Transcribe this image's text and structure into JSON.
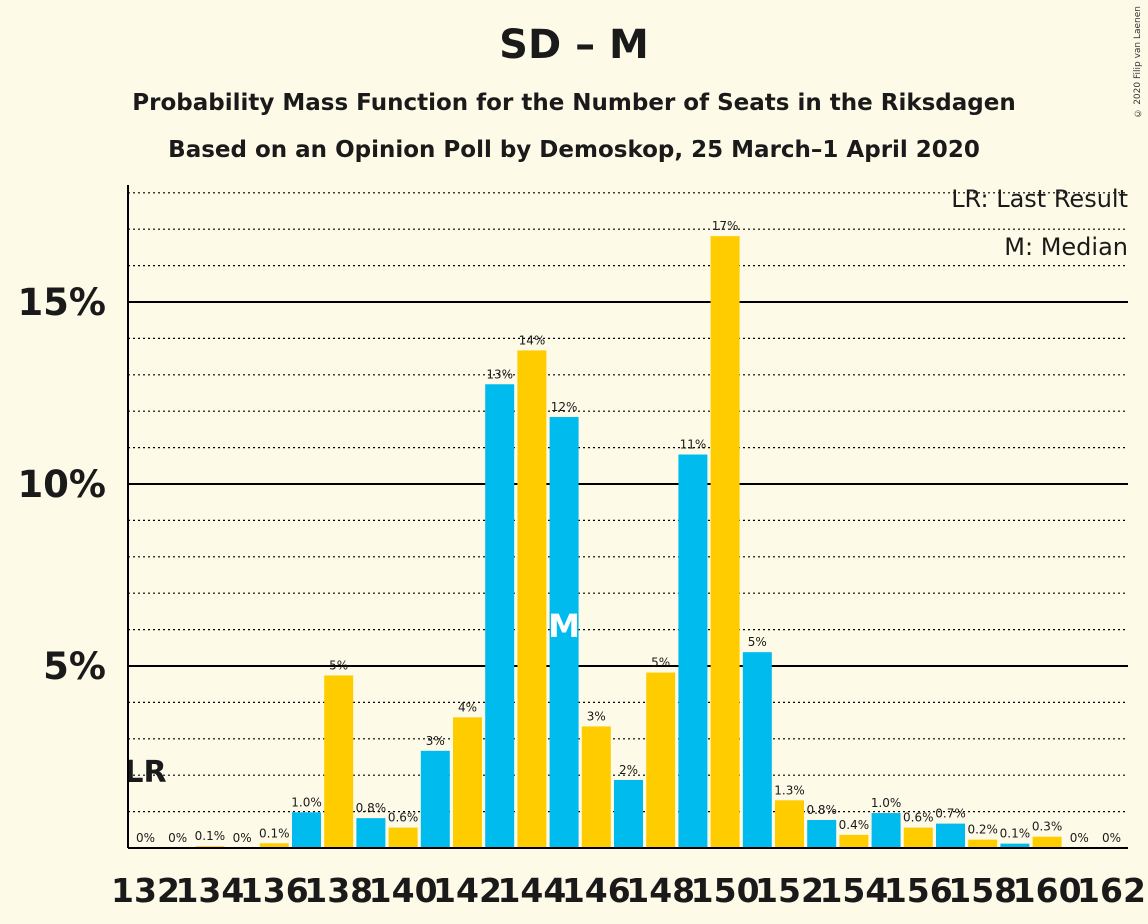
{
  "header": {
    "title": "SD – M",
    "subtitle_1": "Probability Mass Function for the Number of Seats in the Riksdagen",
    "subtitle_2": "Based on an Opinion Poll by Demoskop, 25 March–1 April 2020",
    "copyright": "© 2020 Filip van Laenen"
  },
  "legend": {
    "last_result": "LR: Last Result",
    "median": "M: Median"
  },
  "colors": {
    "blue": "#00bbee",
    "yellow": "#ffcc00",
    "background": "#fefae8",
    "axis": "#000000"
  },
  "chart_data": {
    "type": "bar",
    "x": [
      132,
      133,
      134,
      135,
      136,
      137,
      138,
      139,
      140,
      141,
      142,
      143,
      144,
      145,
      146,
      147,
      148,
      149,
      150,
      151,
      152,
      153,
      154,
      155,
      156,
      157,
      158,
      159,
      160,
      161,
      162
    ],
    "values": [
      0,
      0,
      0.0005,
      0,
      0.0013,
      0.0098,
      0.0474,
      0.0082,
      0.0056,
      0.0267,
      0.0359,
      0.1274,
      0.1367,
      0.1184,
      0.0334,
      0.0187,
      0.0482,
      0.1081,
      0.1681,
      0.0538,
      0.0131,
      0.0077,
      0.0036,
      0.0096,
      0.0056,
      0.0067,
      0.0023,
      0.0012,
      0.0031,
      0,
      0
    ],
    "data_labels": [
      "0%",
      "0%",
      "0.1%",
      "0%",
      "0.1%",
      "1.0%",
      "5%",
      "0.8%",
      "0.6%",
      "3%",
      "4%",
      "13%",
      "14%",
      "12%",
      "3%",
      "2%",
      "5%",
      "11%",
      "17%",
      "5%",
      "1.3%",
      "0.8%",
      "0.4%",
      "1.0%",
      "0.6%",
      "0.7%",
      "0.2%",
      "0.1%",
      "0.3%",
      "0%",
      "0%"
    ],
    "x_tick_labels": [
      "132",
      "134",
      "136",
      "138",
      "140",
      "142",
      "144",
      "146",
      "148",
      "150",
      "152",
      "154",
      "156",
      "158",
      "160",
      "162"
    ],
    "y_tick_labels": [
      "5%",
      "10%",
      "15%"
    ],
    "y_ticks": [
      0.05,
      0.1,
      0.15
    ],
    "ylim": [
      0,
      0.1825
    ],
    "last_result_seat": 132,
    "last_result_marker": "LR",
    "median_seat": 145,
    "median_marker": "M",
    "grid": "dotted every 1%, solid every 5%"
  }
}
